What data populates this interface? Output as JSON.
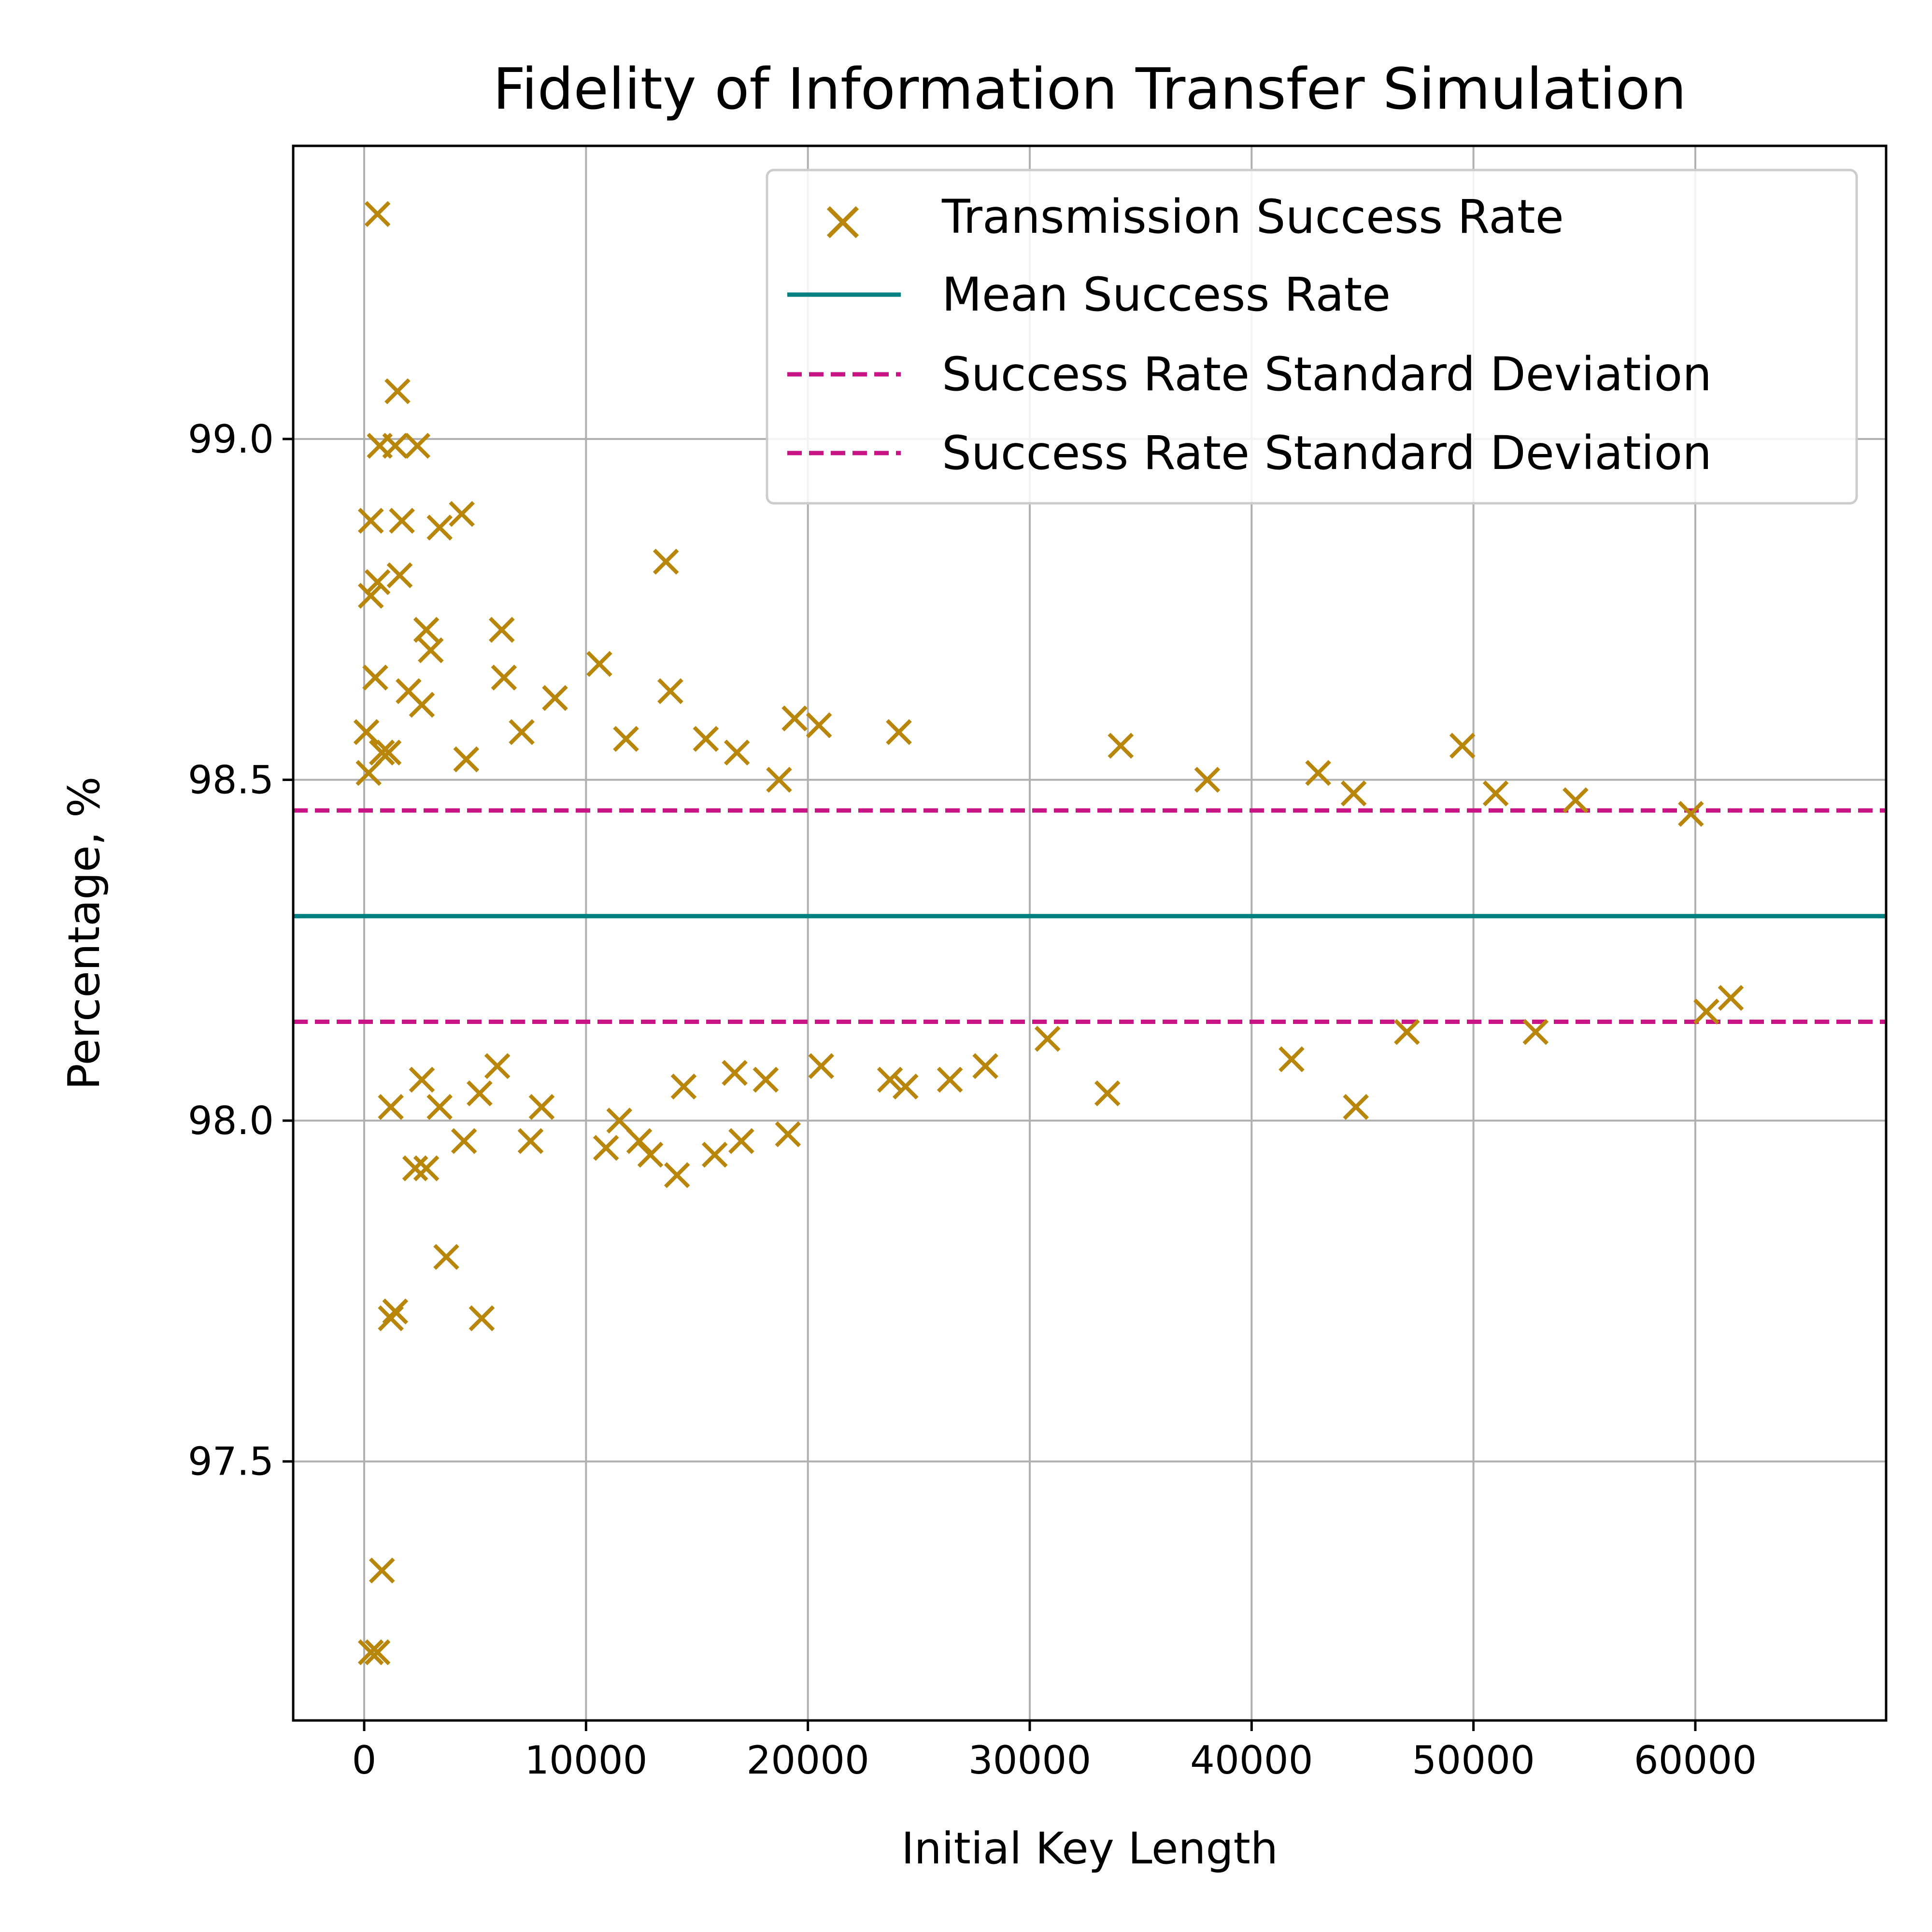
{
  "chart_data": {
    "type": "scatter",
    "title": "Fidelity of Information Transfer Simulation",
    "xlabel": "Initial Key Length",
    "ylabel": "Percentage, %",
    "xlim": [
      -3200,
      68600
    ],
    "ylim": [
      97.12,
      99.43
    ],
    "xticks": [
      0,
      10000,
      20000,
      30000,
      40000,
      50000,
      60000
    ],
    "xtick_labels": [
      "0",
      "10000",
      "20000",
      "30000",
      "40000",
      "50000",
      "60000"
    ],
    "yticks": [
      97.5,
      98.0,
      98.5,
      99.0
    ],
    "ytick_labels": [
      "97.5",
      "98.0",
      "98.5",
      "99.0"
    ],
    "grid": true,
    "legend_position": "top-right",
    "mean": 98.3,
    "std_upper": 98.455,
    "std_lower": 98.145,
    "colors": {
      "scatter": "#b8860b",
      "mean": "#008080",
      "std": "#c71585",
      "grid": "#b0b0b0"
    },
    "series": [
      {
        "name": "Transmission Success Rate",
        "marker": "x",
        "points": [
          [
            600,
            99.33
          ],
          [
            1500,
            99.07
          ],
          [
            700,
            98.99
          ],
          [
            1400,
            98.99
          ],
          [
            2400,
            98.99
          ],
          [
            300,
            98.88
          ],
          [
            1700,
            98.88
          ],
          [
            3400,
            98.87
          ],
          [
            4400,
            98.89
          ],
          [
            1600,
            98.8
          ],
          [
            600,
            98.79
          ],
          [
            300,
            98.77
          ],
          [
            13600,
            98.82
          ],
          [
            2800,
            98.72
          ],
          [
            6200,
            98.72
          ],
          [
            3000,
            98.69
          ],
          [
            500,
            98.65
          ],
          [
            6300,
            98.65
          ],
          [
            2000,
            98.63
          ],
          [
            10600,
            98.67
          ],
          [
            2600,
            98.61
          ],
          [
            8600,
            98.62
          ],
          [
            13800,
            98.63
          ],
          [
            19400,
            98.59
          ],
          [
            20500,
            98.58
          ],
          [
            24100,
            98.57
          ],
          [
            34100,
            98.55
          ],
          [
            49500,
            98.55
          ],
          [
            100,
            98.57
          ],
          [
            800,
            98.54
          ],
          [
            1100,
            98.54
          ],
          [
            4600,
            98.53
          ],
          [
            7100,
            98.57
          ],
          [
            11800,
            98.56
          ],
          [
            15400,
            98.56
          ],
          [
            16800,
            98.54
          ],
          [
            18700,
            98.5
          ],
          [
            43000,
            98.51
          ],
          [
            38000,
            98.5
          ],
          [
            54600,
            98.47
          ],
          [
            51000,
            98.48
          ],
          [
            44600,
            98.48
          ],
          [
            59800,
            98.45
          ],
          [
            200,
            98.51
          ],
          [
            300,
            97.22
          ],
          [
            600,
            97.22
          ],
          [
            800,
            97.34
          ],
          [
            1200,
            97.71
          ],
          [
            1400,
            97.72
          ],
          [
            3700,
            97.8
          ],
          [
            5300,
            97.71
          ],
          [
            2300,
            97.93
          ],
          [
            2800,
            97.93
          ],
          [
            4500,
            97.97
          ],
          [
            7500,
            97.97
          ],
          [
            10900,
            97.96
          ],
          [
            12400,
            97.97
          ],
          [
            14100,
            97.92
          ],
          [
            15800,
            97.95
          ],
          [
            17000,
            97.97
          ],
          [
            19100,
            97.98
          ],
          [
            1200,
            98.02
          ],
          [
            3400,
            98.02
          ],
          [
            5200,
            98.04
          ],
          [
            8000,
            98.02
          ],
          [
            11500,
            98.0
          ],
          [
            12900,
            97.95
          ],
          [
            44700,
            98.02
          ],
          [
            33500,
            98.04
          ],
          [
            14400,
            98.05
          ],
          [
            23700,
            98.06
          ],
          [
            24400,
            98.05
          ],
          [
            26400,
            98.06
          ],
          [
            28000,
            98.08
          ],
          [
            41800,
            98.09
          ],
          [
            52800,
            98.13
          ],
          [
            60500,
            98.16
          ],
          [
            2600,
            98.06
          ],
          [
            6000,
            98.08
          ],
          [
            16700,
            98.07
          ],
          [
            18100,
            98.06
          ],
          [
            20600,
            98.08
          ],
          [
            30800,
            98.12
          ],
          [
            47000,
            98.13
          ],
          [
            61600,
            98.18
          ]
        ]
      }
    ],
    "lines": [
      {
        "name": "Mean Success Rate",
        "y": 98.3,
        "style": "solid"
      },
      {
        "name": "Success Rate Standard Deviation",
        "y": 98.455,
        "style": "dashed"
      },
      {
        "name": "Success Rate Standard Deviation",
        "y": 98.145,
        "style": "dashed"
      }
    ],
    "legend": [
      "Transmission Success Rate",
      "Mean Success Rate",
      "Success Rate Standard Deviation",
      "Success Rate Standard Deviation"
    ]
  }
}
